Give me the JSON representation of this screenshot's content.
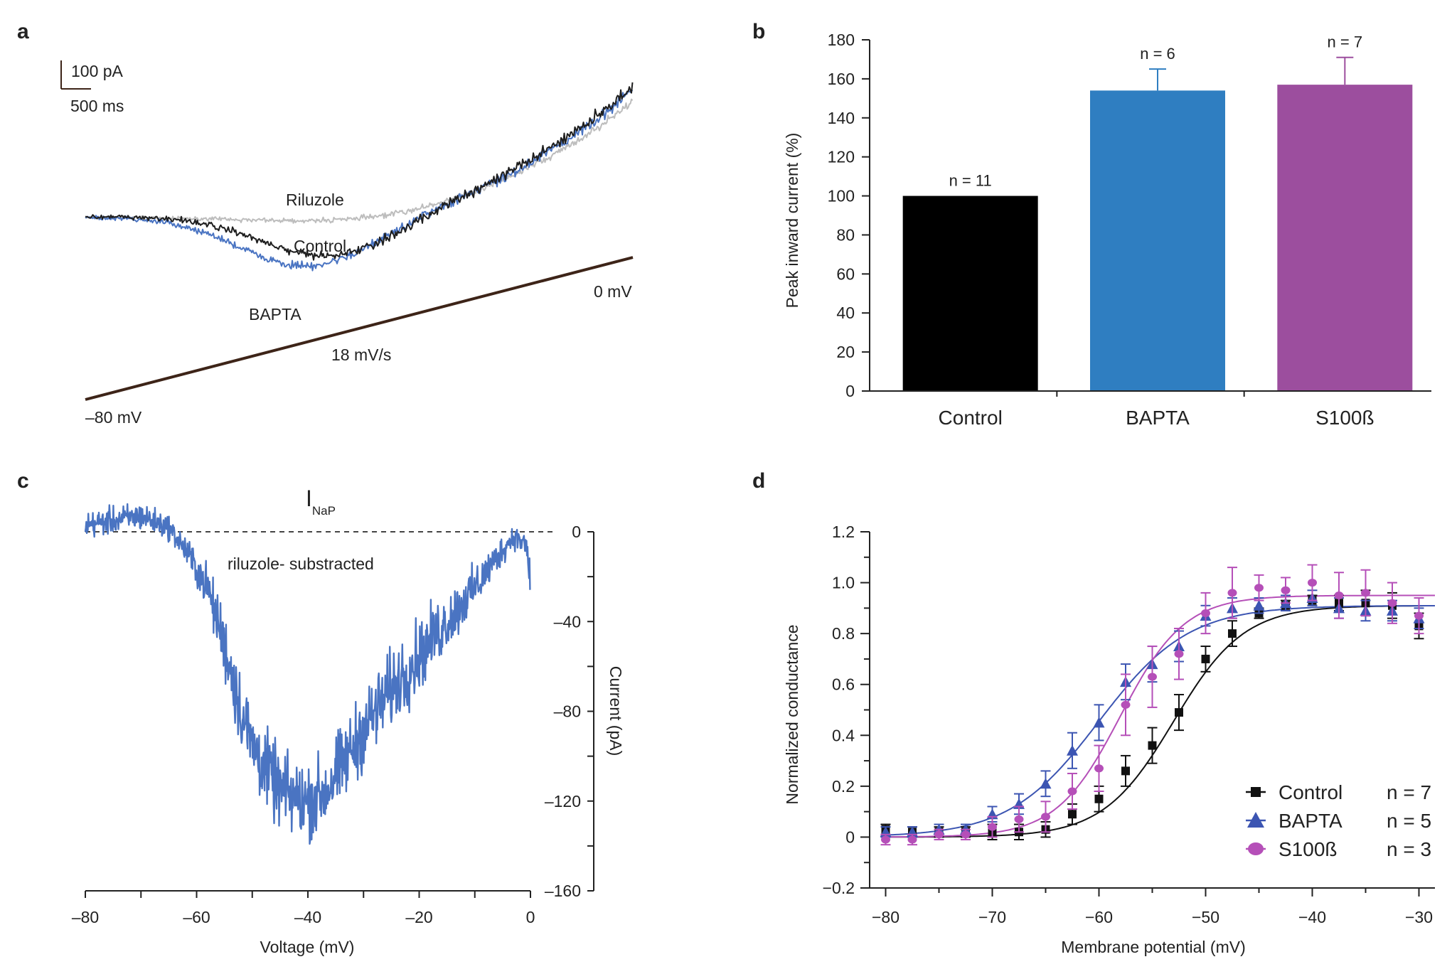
{
  "panels": {
    "a": "a",
    "b": "b",
    "c": "c",
    "d": "d"
  },
  "panel_a": {
    "scale_current": "100 pA",
    "scale_time": "500 ms",
    "trace_labels": {
      "riluzole": "Riluzole",
      "control": "Control",
      "bapta": "BAPTA"
    },
    "ramp_start": "–80 mV",
    "ramp_end": "0 mV",
    "ramp_rate": "18 mV/s",
    "colors": {
      "riluzole": "#bdbdbd",
      "control": "#1e1e1e",
      "bapta": "#4a74c2",
      "ramp": "#3d2418"
    }
  },
  "chart_data": [
    {
      "type": "bar",
      "panel": "b",
      "title": "",
      "xlabel": "",
      "ylabel": "Peak inward current (%)",
      "ylim": [
        0,
        180
      ],
      "yticks": [
        0,
        20,
        40,
        60,
        80,
        100,
        120,
        140,
        160,
        180
      ],
      "yticklabels": [
        "0",
        "20",
        "40",
        "60",
        "80",
        "100",
        "120",
        "140",
        "160",
        "180"
      ],
      "categories": [
        "Control",
        "BAPTA",
        "S100ß"
      ],
      "values": [
        100,
        154,
        157
      ],
      "errors": [
        0,
        11,
        14
      ],
      "n_labels": [
        "n = 11",
        "n = 6",
        "n = 7"
      ],
      "colors": [
        "#000000",
        "#2f7ec1",
        "#9c4e9e"
      ]
    },
    {
      "type": "line",
      "panel": "c",
      "title": "I",
      "title_subscript": "NaP",
      "annotation": "riluzole- substracted",
      "xlabel": "Voltage (mV)",
      "ylabel": "Current (pA)",
      "xlim": [
        -80,
        0
      ],
      "ylim": [
        -160,
        0
      ],
      "xticks": [
        -80,
        -60,
        -40,
        -20,
        0
      ],
      "xticklabels": [
        "–80",
        "–60",
        "–40",
        "–20",
        "0"
      ],
      "yticks": [
        0,
        -40,
        -80,
        -120,
        -160
      ],
      "yticklabels": [
        "0",
        "–40",
        "–80",
        "–120",
        "–160"
      ],
      "color": "#4a74c2",
      "envelope": {
        "x": [
          -80,
          -75,
          -70,
          -65,
          -62,
          -58,
          -55,
          -52,
          -50,
          -47,
          -45,
          -43,
          -40,
          -37,
          -34,
          -30,
          -25,
          -20,
          -15,
          -10,
          -5,
          -3,
          -1,
          0
        ],
        "y": [
          3,
          5,
          7,
          2,
          -8,
          -25,
          -50,
          -80,
          -95,
          -108,
          -115,
          -118,
          -120,
          -116,
          -105,
          -88,
          -70,
          -55,
          -40,
          -25,
          -8,
          -2,
          -5,
          -20
        ]
      }
    },
    {
      "type": "scatter",
      "panel": "d",
      "title": "",
      "xlabel": "Membrane potential (mV)",
      "ylabel": "Normalized conductance",
      "xlim": [
        -81.5,
        -28.5
      ],
      "ylim": [
        -0.2,
        1.2
      ],
      "xticks": [
        -80,
        -70,
        -60,
        -50,
        -40,
        -30
      ],
      "xticklabels": [
        "−80",
        "−70",
        "−60",
        "−50",
        "−40",
        "−30"
      ],
      "yticks": [
        -0.2,
        0,
        0.2,
        0.4,
        0.6,
        0.8,
        1.0,
        1.2
      ],
      "yticklabels": [
        "−0.2",
        "0",
        "0.2",
        "0.4",
        "0.6",
        "0.8",
        "1.0",
        "1.2"
      ],
      "x": [
        -80,
        -77.5,
        -75,
        -72.5,
        -70,
        -67.5,
        -65,
        -62.5,
        -60,
        -57.5,
        -55,
        -52.5,
        -50,
        -47.5,
        -45,
        -42.5,
        -40,
        -37.5,
        -35,
        -32.5,
        -30
      ],
      "series": [
        {
          "name": "Control",
          "n": "n = 7",
          "color": "#111111",
          "marker": "square",
          "values": [
            0.03,
            0.02,
            0.02,
            0.02,
            0.02,
            0.02,
            0.03,
            0.09,
            0.15,
            0.26,
            0.36,
            0.49,
            0.7,
            0.8,
            0.88,
            0.91,
            0.93,
            0.92,
            0.92,
            0.91,
            0.83
          ],
          "errors": [
            0.02,
            0.02,
            0.02,
            0.02,
            0.03,
            0.03,
            0.03,
            0.04,
            0.05,
            0.06,
            0.07,
            0.07,
            0.05,
            0.05,
            0.02,
            0.02,
            0.02,
            0.03,
            0.05,
            0.05,
            0.05
          ],
          "fit": {
            "vhalf": -53.0,
            "k": 3.3,
            "gmax": 0.91
          }
        },
        {
          "name": "BAPTA",
          "n": "n = 5",
          "color": "#3c55b2",
          "marker": "triangle",
          "values": [
            0.02,
            0.02,
            0.03,
            0.03,
            0.09,
            0.13,
            0.21,
            0.34,
            0.45,
            0.61,
            0.68,
            0.75,
            0.87,
            0.9,
            0.91,
            0.92,
            0.94,
            0.9,
            0.89,
            0.89,
            0.86
          ],
          "errors": [
            0.02,
            0.02,
            0.02,
            0.02,
            0.03,
            0.04,
            0.05,
            0.07,
            0.07,
            0.07,
            0.07,
            0.06,
            0.04,
            0.04,
            0.03,
            0.03,
            0.03,
            0.04,
            0.04,
            0.04,
            0.04
          ],
          "fit": {
            "vhalf": -60.0,
            "k": 4.2,
            "gmax": 0.91
          }
        },
        {
          "name": "S100ß",
          "n": "n = 3",
          "color": "#b54fb8",
          "marker": "circle",
          "values": [
            -0.01,
            -0.01,
            0.01,
            0.01,
            0.04,
            0.07,
            0.08,
            0.18,
            0.27,
            0.52,
            0.63,
            0.72,
            0.88,
            0.96,
            0.98,
            0.97,
            1.0,
            0.95,
            0.96,
            0.92,
            0.87
          ],
          "errors": [
            0.02,
            0.02,
            0.02,
            0.02,
            0.04,
            0.05,
            0.06,
            0.07,
            0.09,
            0.12,
            0.12,
            0.1,
            0.08,
            0.1,
            0.05,
            0.05,
            0.07,
            0.09,
            0.09,
            0.08,
            0.07
          ],
          "fit": {
            "vhalf": -58.0,
            "k": 3.0,
            "gmax": 0.95
          }
        }
      ]
    }
  ]
}
